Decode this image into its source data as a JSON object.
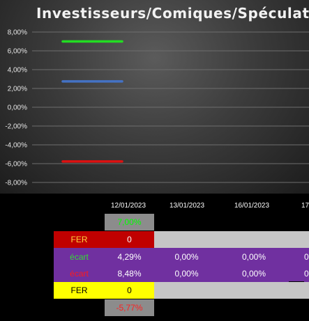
{
  "chart_data": {
    "type": "line",
    "title": "Investisseurs/Comiques/Spéculateurs",
    "ylim": [
      -0.09,
      0.09
    ],
    "y_ticks": [
      "8,00%",
      "6,00%",
      "4,00%",
      "2,00%",
      "0,00%",
      "-2,00%",
      "-4,00%",
      "-6,00%",
      "-8,00%"
    ],
    "y_tick_values": [
      0.08,
      0.06,
      0.04,
      0.02,
      0.0,
      -0.02,
      -0.04,
      -0.06,
      -0.08
    ],
    "grid": true,
    "series": [
      {
        "color": "#22dd22",
        "values": [
          0.07
        ]
      },
      {
        "color": "#4472c4",
        "values": [
          0.0275
        ]
      },
      {
        "color": "#dd1111",
        "values": [
          -0.0577
        ]
      }
    ]
  },
  "table": {
    "dates": [
      "12/01/2023",
      "13/01/2023",
      "16/01/2023",
      "17"
    ],
    "top_value": "7,00%",
    "fer_top_label": "FER",
    "fer_top_value": "0",
    "ecart1": {
      "label": "écart",
      "label_color": "#33dd33",
      "values": [
        "4,29%",
        "0,00%",
        "0,00%",
        "0"
      ]
    },
    "ecart2": {
      "label": "écart",
      "label_color": "#ff1a1a",
      "values": [
        "8,48%",
        "0,00%",
        "0,00%",
        "0"
      ]
    },
    "fer_bottom_label": "FER",
    "fer_bottom_value": "0",
    "bottom_value": "-5,77%"
  },
  "colors": {
    "top_value": "#00ff00",
    "bottom_value": "#ff2020",
    "fer_value": "#ffffff"
  }
}
